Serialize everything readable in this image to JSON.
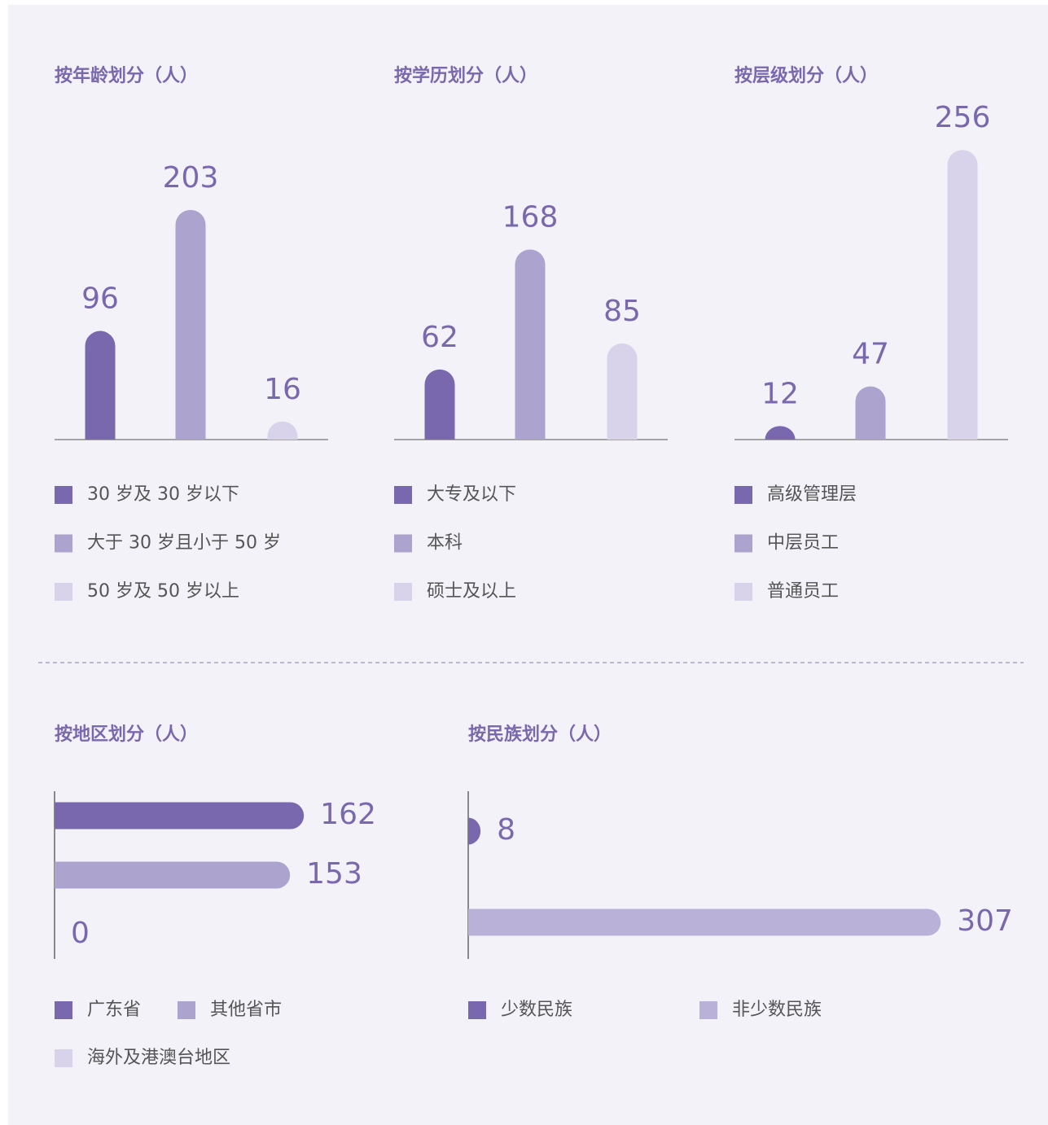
{
  "chart_data": [
    {
      "type": "bar",
      "title": "按年龄划分（人）",
      "categories": [
        "30 岁及 30 岁以下",
        "大于 30 岁且小于 50 岁",
        "50 岁及 50 岁以上"
      ],
      "values": [
        96,
        203,
        16
      ],
      "colors": [
        "#7a68ae",
        "#aca3cf",
        "#d8d3ea"
      ]
    },
    {
      "type": "bar",
      "title": "按学历划分（人）",
      "categories": [
        "大专及以下",
        "本科",
        "硕士及以上"
      ],
      "values": [
        62,
        168,
        85
      ],
      "colors": [
        "#7a68ae",
        "#aca3cf",
        "#d8d3ea"
      ]
    },
    {
      "type": "bar",
      "title": "按层级划分（人）",
      "categories": [
        "高级管理层",
        "中层员工",
        "普通员工"
      ],
      "values": [
        12,
        47,
        256
      ],
      "colors": [
        "#7a68ae",
        "#aca3cf",
        "#d8d3ea"
      ]
    },
    {
      "type": "barh",
      "title": "按地区划分（人）",
      "categories": [
        "广东省",
        "其他省市",
        "海外及港澳台地区"
      ],
      "values": [
        162,
        153,
        0
      ],
      "colors": [
        "#7a68ae",
        "#aca3cf",
        "#d8d3ea"
      ]
    },
    {
      "type": "barh",
      "title": "按民族划分（人）",
      "categories": [
        "少数民族",
        "非少数民族"
      ],
      "values": [
        8,
        307
      ],
      "colors": [
        "#7a68ae",
        "#bab1d9"
      ]
    }
  ]
}
